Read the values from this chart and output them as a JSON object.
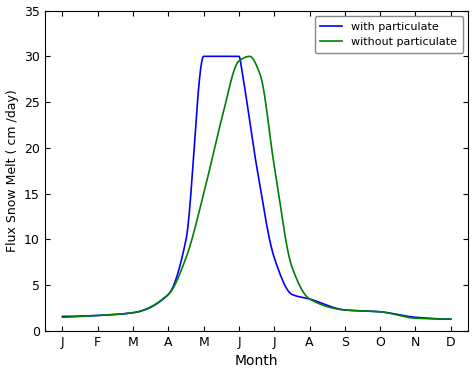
{
  "title": "",
  "xlabel": "Month",
  "ylabel": "Flux Snow Melt ( cm /day)",
  "ylim": [
    0,
    35
  ],
  "yticks": [
    0,
    5,
    10,
    15,
    20,
    25,
    30,
    35
  ],
  "xtick_labels": [
    "J",
    "F",
    "M",
    "A",
    "M",
    "J",
    "J",
    "A",
    "S",
    "O",
    "N",
    "D"
  ],
  "blue_color": "#0000FF",
  "green_color": "#008000",
  "background_color": "#ffffff",
  "legend_labels": [
    "with particulate",
    "without particulate"
  ],
  "blue_x": [
    0,
    1,
    2,
    3,
    3.5,
    4,
    4.1,
    5.0,
    5.1,
    5.5,
    6.0,
    6.5,
    7,
    8,
    9,
    10,
    11
  ],
  "blue_y": [
    1.6,
    1.7,
    2.0,
    4.0,
    10.0,
    30.0,
    30.0,
    30.0,
    28.0,
    18.0,
    8.0,
    4.0,
    3.5,
    2.3,
    2.1,
    1.5,
    1.3
  ],
  "green_x": [
    0,
    1,
    2,
    3,
    3.5,
    4,
    4.5,
    5.0,
    5.3,
    5.6,
    6.0,
    6.5,
    7,
    8,
    9,
    10,
    11
  ],
  "green_y": [
    1.5,
    1.7,
    2.0,
    4.0,
    8.0,
    15.0,
    23.0,
    29.5,
    30.0,
    28.0,
    18.0,
    7.0,
    3.5,
    2.3,
    2.1,
    1.4,
    1.3
  ]
}
